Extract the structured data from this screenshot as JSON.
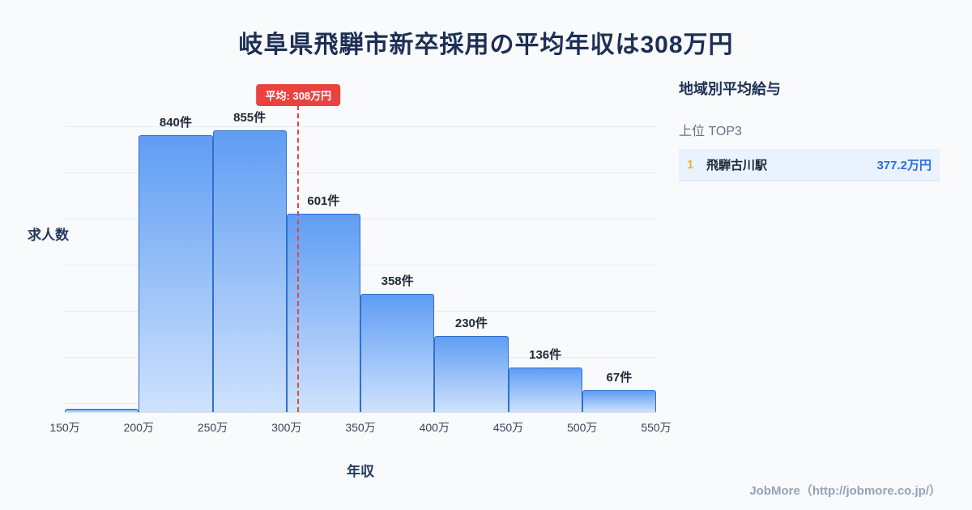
{
  "title": "岐阜県飛騨市新卒採用の平均年収は308万円",
  "chart_data": {
    "type": "bar",
    "subtype": "histogram",
    "title": "岐阜県飛騨市新卒採用の平均年収は308万円",
    "xlabel": "年収",
    "ylabel": "求人数",
    "bin_edge_labels": [
      "150万",
      "200万",
      "250万",
      "300万",
      "350万",
      "400万",
      "450万",
      "500万",
      "550万"
    ],
    "bin_edges_value": [
      150,
      200,
      250,
      300,
      350,
      400,
      450,
      500,
      550
    ],
    "values": [
      10,
      840,
      855,
      601,
      358,
      230,
      136,
      67
    ],
    "bar_labels": [
      "",
      "840件",
      "855件",
      "601件",
      "358件",
      "230件",
      "136件",
      "67件"
    ],
    "average": {
      "label": "平均: 308万円",
      "value": 308,
      "x_min": 150,
      "x_max": 550
    },
    "ylim": [
      0,
      900
    ],
    "grid": "horizontal",
    "colors": {
      "bar_top": "#5f9df3",
      "bar_bottom": "#cfe2fc",
      "bar_border": "#2f6fd0",
      "avg_line": "#e8433f",
      "title_text": "#1c2f55"
    }
  },
  "sidebar": {
    "title": "地域別平均給与",
    "subtitle": "上位 TOP3",
    "rows": [
      {
        "rank": "1",
        "name": "飛騨古川駅",
        "value": "377.2万円"
      }
    ]
  },
  "footer": {
    "credit": "JobMore（http://jobmore.co.jp/）"
  }
}
